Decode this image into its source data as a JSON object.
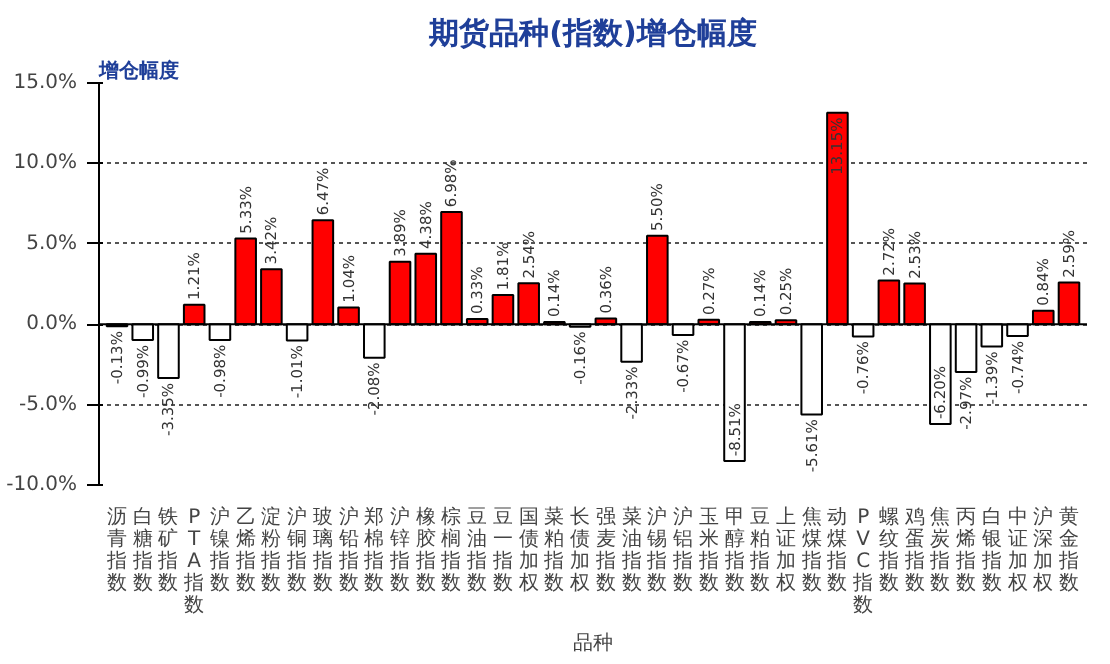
{
  "chart_data": {
    "type": "bar",
    "title": "期货品种(指数)增仓幅度",
    "ylabel": "增仓幅度",
    "xlabel": "品种",
    "categories": [
      "沥青指数",
      "白糖指数",
      "铁矿指数",
      "PTA指数",
      "沪镍指数",
      "乙烯指数",
      "淀粉指数",
      "沪铜指数",
      "玻璃指数",
      "沪铅指数",
      "郑棉指数",
      "沪锌指数",
      "橡胶指数",
      "棕榈指数",
      "豆油指数",
      "豆一指数",
      "国债加权",
      "菜粕指数",
      "长债加权",
      "强麦指数",
      "菜油指数",
      "沪锡指数",
      "沪铝指数",
      "玉米指数",
      "甲醇指数",
      "豆粕指数",
      "上证加权",
      "焦煤指数",
      "动煤指数",
      "PVC指数",
      "螺纹指数",
      "鸡蛋指数",
      "焦炭指数",
      "丙烯指数",
      "白银指数",
      "中证加权",
      "沪深加权",
      "黄金指数"
    ],
    "values": [
      -0.13,
      -0.99,
      -3.35,
      1.21,
      -0.98,
      5.33,
      3.42,
      -1.01,
      6.47,
      1.04,
      -2.08,
      3.89,
      4.38,
      6.98,
      0.33,
      1.81,
      2.54,
      0.14,
      -0.16,
      0.36,
      -2.33,
      5.5,
      -0.67,
      0.27,
      -8.51,
      0.14,
      0.25,
      -5.61,
      13.15,
      -0.76,
      2.72,
      2.53,
      -6.2,
      -2.97,
      -1.39,
      -0.74,
      0.84,
      2.59
    ],
    "value_labels": [
      "-0.13%",
      "-0.99%",
      "-3.35%",
      "1.21%",
      "-0.98%",
      "5.33%",
      "3.42%",
      "-1.01%",
      "6.47%",
      "1.04%",
      "-2.08%",
      "3.89%",
      "4.38%",
      "6.98%",
      "0.33%",
      "1.81%",
      "2.54%",
      "0.14%",
      "-0.16%",
      "0.36%",
      "-2.33%",
      "5.50%",
      "-0.67%",
      "0.27%",
      "-8.51%",
      "0.14%",
      "0.25%",
      "-5.61%",
      "13.15%",
      "-0.76%",
      "2.72%",
      "2.53%",
      "-6.20%",
      "-2.97%",
      "-1.39%",
      "-0.74%",
      "0.84%",
      "2.59%"
    ],
    "colors": [
      "#ffffff",
      "#ffffff",
      "#ffffff",
      "#ff0000",
      "#ffffff",
      "#ff0000",
      "#ff0000",
      "#ffffff",
      "#ff0000",
      "#ff0000",
      "#ffffff",
      "#ff0000",
      "#ff0000",
      "#ff0000",
      "#ff0000",
      "#ff0000",
      "#ff0000",
      "#ff0000",
      "#ffffff",
      "#ff0000",
      "#ffffff",
      "#ff0000",
      "#ffffff",
      "#ff0000",
      "#ffffff",
      "#ff0000",
      "#ff0000",
      "#ffffff",
      "#ff0000",
      "#ffffff",
      "#ff0000",
      "#ff0000",
      "#ffffff",
      "#ffffff",
      "#ffffff",
      "#ffffff",
      "#ff0000",
      "#ff0000"
    ],
    "ylim": [
      -10,
      15
    ],
    "yticks": [
      {
        "value": -10,
        "label": "-10.0%"
      },
      {
        "value": -5,
        "label": "-5.0%"
      },
      {
        "value": 0,
        "label": "0.0%"
      },
      {
        "value": 5,
        "label": "5.0%"
      },
      {
        "value": 10,
        "label": "10.0%"
      },
      {
        "value": 15,
        "label": "15.0%"
      }
    ],
    "grid": "y"
  }
}
